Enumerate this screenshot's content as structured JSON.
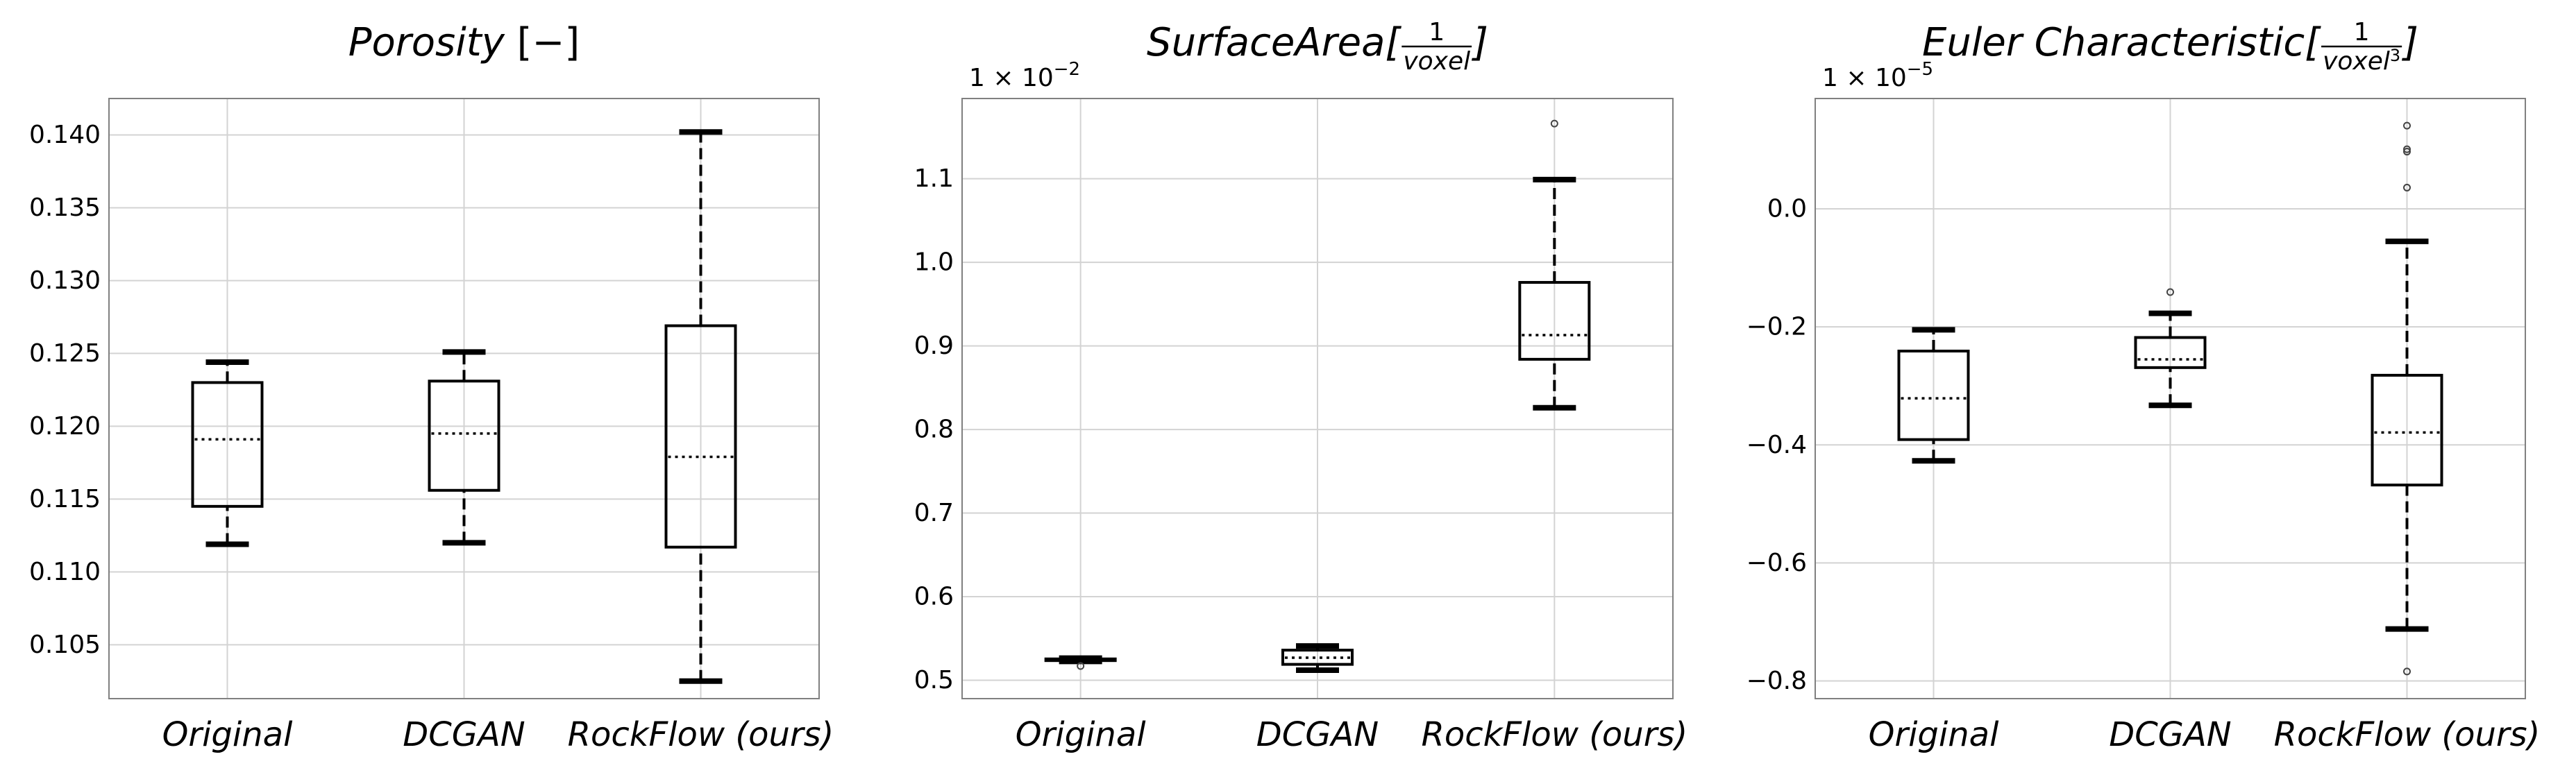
{
  "chart_data": [
    {
      "type": "box",
      "title": "Porosity",
      "title_unit": "[−]",
      "multiplier": null,
      "categories": [
        "Original",
        "DCGAN",
        "RockFlow (ours)"
      ],
      "ylim": [
        0.1013,
        0.1425
      ],
      "yticks": [
        0.105,
        0.11,
        0.115,
        0.12,
        0.125,
        0.13,
        0.135,
        0.14
      ],
      "ytick_labels": [
        "0.105",
        "0.110",
        "0.115",
        "0.120",
        "0.125",
        "0.130",
        "0.135",
        "0.140"
      ],
      "grid": true,
      "boxes": [
        {
          "name": "Original",
          "whisker_low": 0.1119,
          "q1": 0.1145,
          "median": 0.1191,
          "q3": 0.123,
          "whisker_high": 0.1244,
          "fliers": []
        },
        {
          "name": "DCGAN",
          "whisker_low": 0.112,
          "q1": 0.1156,
          "median": 0.1195,
          "q3": 0.1231,
          "whisker_high": 0.1251,
          "fliers": []
        },
        {
          "name": "RockFlow (ours)",
          "whisker_low": 0.1025,
          "q1": 0.1117,
          "median": 0.1179,
          "q3": 0.1269,
          "whisker_high": 0.1402,
          "fliers": []
        }
      ]
    },
    {
      "type": "box",
      "title": "SurfaceArea",
      "title_unit": {
        "open": "[",
        "numerator": "1",
        "denominator": "voxel",
        "denominator_exp": "",
        "close": "]"
      },
      "multiplier": {
        "base": "1 × 10",
        "exponent": "−2"
      },
      "categories": [
        "Original",
        "DCGAN",
        "RockFlow (ours)"
      ],
      "ylim": [
        0.478,
        1.196
      ],
      "yticks": [
        0.5,
        0.6,
        0.7,
        0.8,
        0.9,
        1.0,
        1.1
      ],
      "ytick_labels": [
        "0.5",
        "0.6",
        "0.7",
        "0.8",
        "0.9",
        "1.0",
        "1.1"
      ],
      "grid": true,
      "boxes": [
        {
          "name": "Original",
          "whisker_low": 0.5225,
          "q1": 0.5235,
          "median": 0.5245,
          "q3": 0.5255,
          "whisker_high": 0.5265,
          "fliers": [
            0.517
          ]
        },
        {
          "name": "DCGAN",
          "whisker_low": 0.512,
          "q1": 0.519,
          "median": 0.527,
          "q3": 0.536,
          "whisker_high": 0.541,
          "fliers": []
        },
        {
          "name": "RockFlow (ours)",
          "whisker_low": 0.826,
          "q1": 0.884,
          "median": 0.913,
          "q3": 0.976,
          "whisker_high": 1.099,
          "fliers": [
            1.166
          ]
        }
      ]
    },
    {
      "type": "box",
      "title": "Euler Characteristic",
      "title_unit": {
        "open": "[",
        "numerator": "1",
        "denominator": "voxel",
        "denominator_exp": "3",
        "close": "]"
      },
      "multiplier": {
        "base": "1 × 10",
        "exponent": "−5"
      },
      "categories": [
        "Original",
        "DCGAN",
        "RockFlow (ours)"
      ],
      "ylim": [
        -0.83,
        0.187
      ],
      "yticks": [
        -0.8,
        -0.6,
        -0.4,
        -0.2,
        0.0
      ],
      "ytick_labels": [
        "−0.8",
        "−0.6",
        "−0.4",
        "−0.2",
        "0.0"
      ],
      "grid": true,
      "boxes": [
        {
          "name": "Original",
          "whisker_low": -0.427,
          "q1": -0.391,
          "median": -0.321,
          "q3": -0.241,
          "whisker_high": -0.205,
          "fliers": []
        },
        {
          "name": "DCGAN",
          "whisker_low": -0.333,
          "q1": -0.269,
          "median": -0.255,
          "q3": -0.218,
          "whisker_high": -0.177,
          "fliers": [
            -0.141
          ]
        },
        {
          "name": "RockFlow (ours)",
          "whisker_low": -0.712,
          "q1": -0.468,
          "median": -0.379,
          "q3": -0.282,
          "whisker_high": -0.055,
          "fliers": [
            -0.784,
            0.036,
            0.097,
            0.101,
            0.141
          ]
        }
      ]
    }
  ]
}
